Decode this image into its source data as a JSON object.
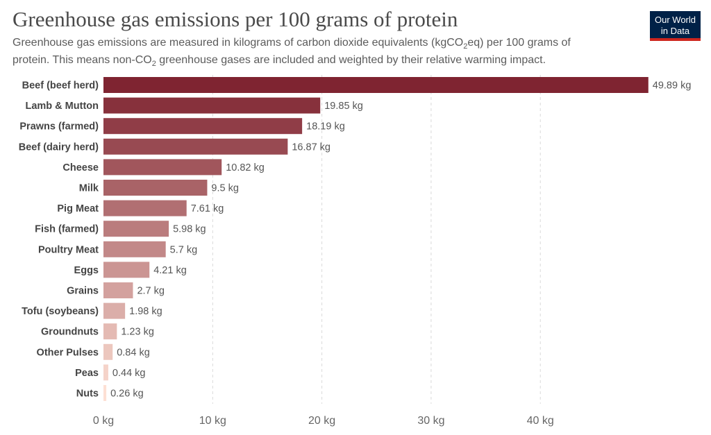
{
  "title": "Greenhouse gas emissions per 100 grams of protein",
  "subtitle": {
    "line1_a": "Greenhouse gas emissions are measured in kilograms of carbon dioxide equivalents (kgCO",
    "line1_sub": "2",
    "line1_b": "eq) per 100 grams of",
    "line2_a": "protein. This means non-CO",
    "line2_sub": "2",
    "line2_b": " greenhouse gases are included and weighted by their relative warming impact."
  },
  "logo": {
    "line1": "Our World",
    "line2": "in Data"
  },
  "colors": {
    "bar_dark": "#7f2431",
    "bar_light": "#fde0d4",
    "grid": "#d9d9d9",
    "logo_bg": "#002147",
    "logo_accent": "#ce261e"
  },
  "chart_data": {
    "type": "bar",
    "orientation": "horizontal",
    "categories": [
      "Beef (beef herd)",
      "Lamb & Mutton",
      "Prawns (farmed)",
      "Beef (dairy herd)",
      "Cheese",
      "Milk",
      "Pig Meat",
      "Fish (farmed)",
      "Poultry Meat",
      "Eggs",
      "Grains",
      "Tofu (soybeans)",
      "Groundnuts",
      "Other Pulses",
      "Peas",
      "Nuts"
    ],
    "values": [
      49.89,
      19.85,
      18.19,
      16.87,
      10.82,
      9.5,
      7.61,
      5.98,
      5.7,
      4.21,
      2.7,
      1.98,
      1.23,
      0.84,
      0.44,
      0.26
    ],
    "value_labels": [
      "49.89 kg",
      "19.85 kg",
      "18.19 kg",
      "16.87 kg",
      "10.82 kg",
      "9.5 kg",
      "7.61 kg",
      "5.98 kg",
      "5.7 kg",
      "4.21 kg",
      "2.7 kg",
      "1.98 kg",
      "1.23 kg",
      "0.84 kg",
      "0.44 kg",
      "0.26 kg"
    ],
    "xticks": [
      0,
      10,
      20,
      30,
      40
    ],
    "xtick_labels": [
      "0 kg",
      "10 kg",
      "20 kg",
      "30 kg",
      "40 kg"
    ],
    "xlim": [
      0,
      50
    ],
    "grid": "vertical dashed"
  }
}
